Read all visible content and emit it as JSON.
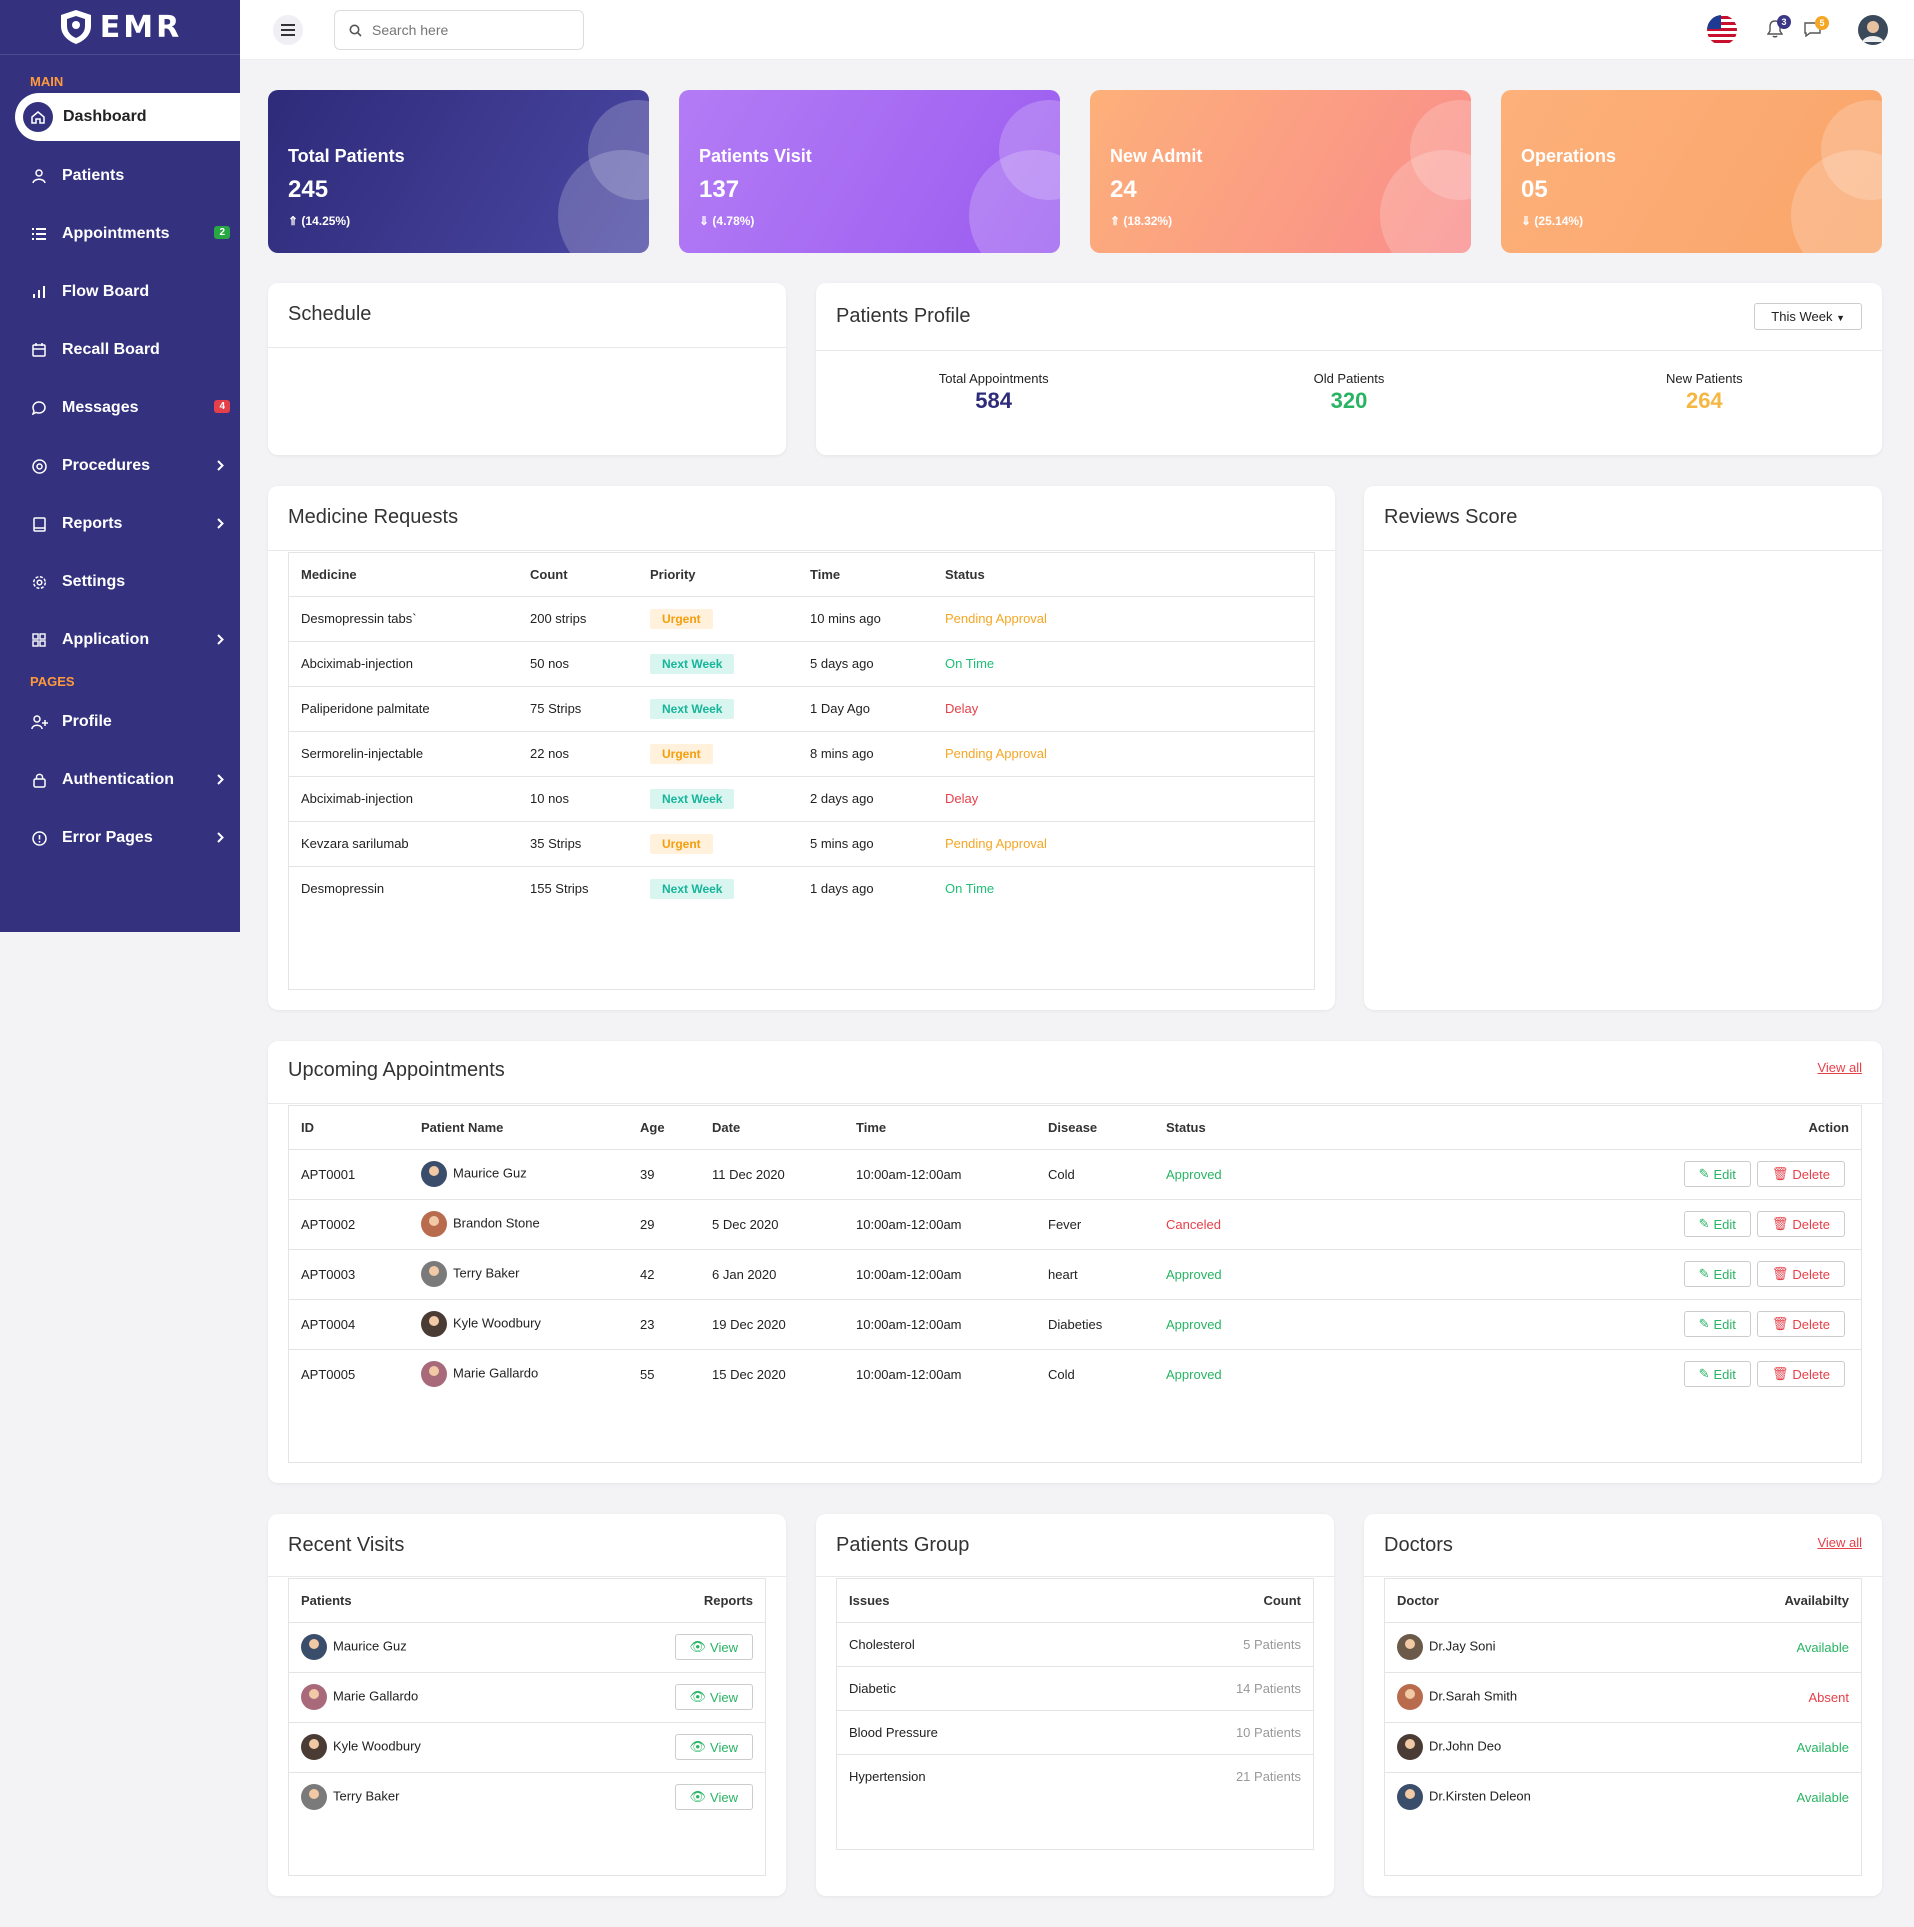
{
  "app": {
    "logo": "EMR"
  },
  "sidebar": {
    "section_main": "MAIN",
    "section_pages": "PAGES",
    "items": [
      {
        "label": "Dashboard",
        "icon": "home-icon"
      },
      {
        "label": "Patients",
        "icon": "user-icon"
      },
      {
        "label": "Appointments",
        "icon": "list-icon",
        "badge": "2"
      },
      {
        "label": "Flow Board",
        "icon": "bar-chart-icon"
      },
      {
        "label": "Recall Board",
        "icon": "calendar-icon"
      },
      {
        "label": "Messages",
        "icon": "message-icon",
        "badge": "4"
      },
      {
        "label": "Procedures",
        "icon": "target-icon"
      },
      {
        "label": "Reports",
        "icon": "book-icon"
      },
      {
        "label": "Settings",
        "icon": "gear-icon"
      },
      {
        "label": "Application",
        "icon": "grid-icon"
      },
      {
        "label": "Profile",
        "icon": "user-plus-icon"
      },
      {
        "label": "Authentication",
        "icon": "lock-icon"
      },
      {
        "label": "Error Pages",
        "icon": "alert-circle-icon"
      }
    ],
    "badge_colors": {
      "green": "#28a745",
      "red": "#e5404a"
    }
  },
  "header": {
    "search_placeholder": "Search here",
    "notif_count": "3",
    "msg_count": "5"
  },
  "stats": [
    {
      "title": "Total Patients",
      "value": "245",
      "pct": "(14.25%)",
      "trend": "up"
    },
    {
      "title": "Patients Visit",
      "value": "137",
      "pct": "(4.78%)",
      "trend": "down"
    },
    {
      "title": "New Admit",
      "value": "24",
      "pct": "(18.32%)",
      "trend": "up"
    },
    {
      "title": "Operations",
      "value": "05",
      "pct": "(25.14%)",
      "trend": "down"
    }
  ],
  "schedule": {
    "title": "Schedule"
  },
  "profile": {
    "title": "Patients Profile",
    "filter": "This Week",
    "total_label": "Total Appointments",
    "total_value": "584",
    "old_label": "Old Patients",
    "old_value": "320",
    "new_label": "New Patients",
    "new_value": "264"
  },
  "medicine": {
    "title": "Medicine Requests",
    "headers": [
      "Medicine",
      "Count",
      "Priority",
      "Time",
      "Status"
    ],
    "rows": [
      [
        "Desmopressin tabs`",
        "200 strips",
        "Urgent",
        "10 mins ago",
        "Pending Approval"
      ],
      [
        "Abciximab-injection",
        "50 nos",
        "Next Week",
        "5 days ago",
        "On Time"
      ],
      [
        "Paliperidone palmitate",
        "75 Strips",
        "Next Week",
        "1 Day Ago",
        "Delay"
      ],
      [
        "Sermorelin-injectable",
        "22 nos",
        "Urgent",
        "8 mins ago",
        "Pending Approval"
      ],
      [
        "Abciximab-injection",
        "10 nos",
        "Next Week",
        "2 days ago",
        "Delay"
      ],
      [
        "Kevzara sarilumab",
        "35 Strips",
        "Urgent",
        "5 mins ago",
        "Pending Approval"
      ],
      [
        "Desmopressin",
        "155 Strips",
        "Next Week",
        "1 days ago",
        "On Time"
      ]
    ]
  },
  "reviews": {
    "title": "Reviews Score"
  },
  "appointments": {
    "title": "Upcoming Appointments",
    "view_all": "View all",
    "headers": [
      "ID",
      "Patient Name",
      "Age",
      "Date",
      "Time",
      "Disease",
      "Status",
      "Action"
    ],
    "edit_label": "Edit",
    "delete_label": "Delete",
    "rows": [
      [
        "APT0001",
        "Maurice Guz",
        "39",
        "11 Dec 2020",
        "10:00am-12:00am",
        "Cold",
        "Approved"
      ],
      [
        "APT0002",
        "Brandon Stone",
        "29",
        "5 Dec 2020",
        "10:00am-12:00am",
        "Fever",
        "Canceled"
      ],
      [
        "APT0003",
        "Terry Baker",
        "42",
        "6 Jan 2020",
        "10:00am-12:00am",
        "heart",
        "Approved"
      ],
      [
        "APT0004",
        "Kyle Woodbury",
        "23",
        "19 Dec 2020",
        "10:00am-12:00am",
        "Diabeties",
        "Approved"
      ],
      [
        "APT0005",
        "Marie Gallardo",
        "55",
        "15 Dec 2020",
        "10:00am-12:00am",
        "Cold",
        "Approved"
      ]
    ]
  },
  "recent": {
    "title": "Recent Visits",
    "headers": [
      "Patients",
      "Reports"
    ],
    "view_label": "View",
    "rows": [
      "Maurice Guz",
      "Marie Gallardo",
      "Kyle Woodbury",
      "Terry Baker"
    ]
  },
  "group": {
    "title": "Patients Group",
    "headers": [
      "Issues",
      "Count"
    ],
    "rows": [
      [
        "Cholesterol",
        "5 Patients"
      ],
      [
        "Diabetic",
        "14 Patients"
      ],
      [
        "Blood Pressure",
        "10 Patients"
      ],
      [
        "Hypertension",
        "21 Patients"
      ]
    ]
  },
  "doctors": {
    "title": "Doctors",
    "view_all": "View all",
    "headers": [
      "Doctor",
      "Availabilty"
    ],
    "rows": [
      [
        "Dr.Jay Soni",
        "Available"
      ],
      [
        "Dr.Sarah Smith",
        "Absent"
      ],
      [
        "Dr.John Deo",
        "Available"
      ],
      [
        "Dr.Kirsten Deleon",
        "Available"
      ]
    ]
  }
}
